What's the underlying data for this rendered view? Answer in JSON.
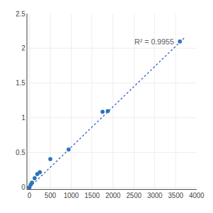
{
  "chart_data": {
    "type": "scatter",
    "series": [
      {
        "type": "scatter",
        "marker": "circle",
        "color": "#2e75b6",
        "x": [
          0,
          31.25,
          62.5,
          125,
          187.5,
          250,
          500,
          937.5,
          1750,
          1875,
          3600
        ],
        "values": [
          0.004,
          0.044,
          0.072,
          0.138,
          0.196,
          0.222,
          0.411,
          0.549,
          1.09,
          1.1,
          2.1
        ]
      },
      {
        "type": "line",
        "line_style": "dotted",
        "color": "#4472c4",
        "x": [
          0,
          3700
        ],
        "values": [
          0.003,
          2.148
        ]
      }
    ],
    "annotations": [
      {
        "text": "R² = 0.9955",
        "x": 2480,
        "y": 2.18
      }
    ],
    "xlim": [
      -50,
      4000
    ],
    "ylim": [
      -0.02,
      2.5
    ],
    "xticks": [
      0,
      500,
      1000,
      1500,
      2000,
      2500,
      3000,
      3500,
      4000
    ],
    "yticks": [
      0,
      0.5,
      1,
      1.5,
      2,
      2.5
    ],
    "grid": true
  }
}
